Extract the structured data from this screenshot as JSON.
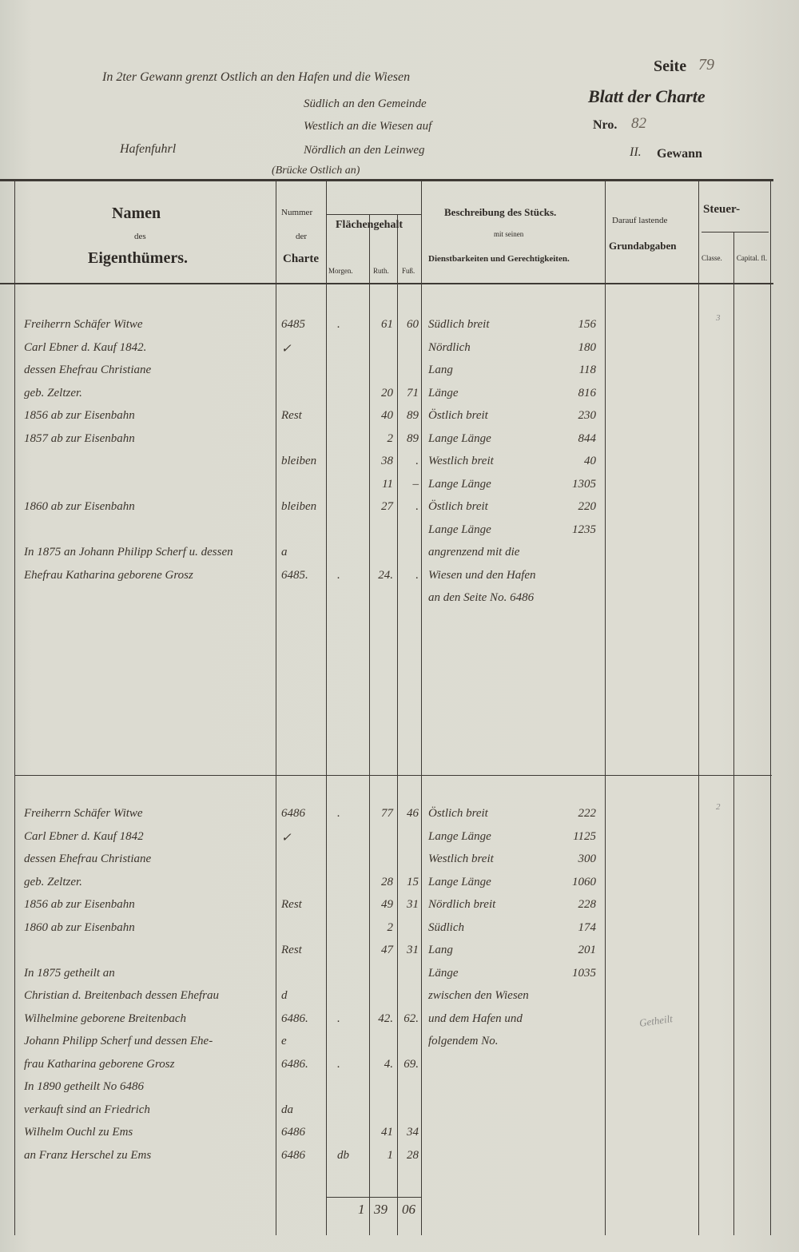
{
  "header": {
    "boundary_lines": [
      "In 2ter Gewann grenzt Ostlich an den Hafen und die Wiesen",
      "Südlich an den Gemeinde",
      "Westlich an die Wiesen auf",
      "Nördlich an den Leinweg",
      "(Brücke Ostlich an)"
    ],
    "field_name": "Hafenfuhrl",
    "seite_label": "Seite",
    "seite_value": "79",
    "blatt_label": "Blatt der Charte",
    "nro_label": "Nro.",
    "nro_value": "82",
    "gewann_number": "II.",
    "gewann_label": "Gewann"
  },
  "columns": {
    "namen": "Namen",
    "des": "des",
    "eigenthuemers": "Eigenthümers.",
    "nummer": "Nummer",
    "der": "der",
    "charte": "Charte",
    "flaechengehalt": "Flächengehalt",
    "morgen": "Morgen.",
    "ruth": "Ruth.",
    "fuss": "Fuß.",
    "beschreibung": "Beschreibung des Stücks.",
    "mit_seinen": "mit seinen",
    "dienstbarkeiten": "Dienstbarkeiten und Gerechtigkeiten.",
    "darauf": "Darauf lastende",
    "grundabgaben": "Grundabgaben",
    "steuer": "Steuer-",
    "classe": "Classe.",
    "capital": "Capital. fl."
  },
  "sections": [
    {
      "classe": "3",
      "lines": [
        {
          "name": "Freiherrn Schäfer Witwe",
          "num": "6485",
          "morgen": ".",
          "ruth": "61",
          "fuss": "60",
          "desc": "Südlich breit",
          "val": "156"
        },
        {
          "name": "Carl Ebner d. Kauf 1842.",
          "num": "✓",
          "morgen": "",
          "ruth": "",
          "fuss": "",
          "desc": "Nördlich",
          "val": "180"
        },
        {
          "name": "dessen Ehefrau Christiane",
          "num": "",
          "morgen": "",
          "ruth": "",
          "fuss": "",
          "desc": "Lang",
          "val": "118"
        },
        {
          "name": "   geb. Zeltzer.",
          "num": "",
          "morgen": "",
          "ruth": "20",
          "fuss": "71",
          "desc": "      Länge",
          "val": "816"
        },
        {
          "name": "1856 ab zur Eisenbahn",
          "num": "Rest",
          "morgen": "",
          "ruth": "40",
          "fuss": "89",
          "desc": "Östlich breit",
          "val": "230"
        },
        {
          "name": "1857 ab zur Eisenbahn",
          "num": "",
          "morgen": "",
          "ruth": "2",
          "fuss": "89",
          "desc": "Lange Länge",
          "val": "844"
        },
        {
          "name": "",
          "num": "bleiben",
          "morgen": "",
          "ruth": "38",
          "fuss": ".",
          "desc": "Westlich breit",
          "val": "40"
        },
        {
          "name": "",
          "num": "",
          "morgen": "",
          "ruth": "11",
          "fuss": "–",
          "desc": "Lange Länge",
          "val": "1305"
        },
        {
          "name": "1860 ab zur Eisenbahn",
          "num": "bleiben",
          "morgen": "",
          "ruth": "27",
          "fuss": ".",
          "desc": "Östlich breit",
          "val": "220"
        },
        {
          "name": "",
          "num": "",
          "morgen": "",
          "ruth": "",
          "fuss": "",
          "desc": "Lange Länge",
          "val": "1235"
        },
        {
          "name": "In 1875 an Johann Philipp Scherf u. dessen",
          "num": "a",
          "morgen": "",
          "ruth": "",
          "fuss": "",
          "desc": "angrenzend mit die",
          "val": ""
        },
        {
          "name": "Ehefrau Katharina geborene Grosz",
          "num": "6485.",
          "morgen": ".",
          "ruth": "24.",
          "fuss": ".",
          "desc": "Wiesen und den Hafen",
          "val": ""
        },
        {
          "name": "",
          "num": "",
          "morgen": "",
          "ruth": "",
          "fuss": "",
          "desc": "an den Seite No. 6486",
          "val": ""
        }
      ]
    },
    {
      "classe": "2",
      "lines": [
        {
          "name": "Freiherrn Schäfer Witwe",
          "num": "6486",
          "morgen": ".",
          "ruth": "77",
          "fuss": "46",
          "desc": "Östlich breit",
          "val": "222"
        },
        {
          "name": "Carl Ebner d. Kauf 1842",
          "num": "✓",
          "morgen": "",
          "ruth": "",
          "fuss": "",
          "desc": "Lange Länge",
          "val": "1125"
        },
        {
          "name": "dessen Ehefrau Christiane",
          "num": "",
          "morgen": "",
          "ruth": "",
          "fuss": "",
          "desc": "Westlich breit",
          "val": "300"
        },
        {
          "name": "   geb. Zeltzer.",
          "num": "",
          "morgen": "",
          "ruth": "28",
          "fuss": "15",
          "desc": "Lange Länge",
          "val": "1060"
        },
        {
          "name": "1856 ab zur Eisenbahn",
          "num": "Rest",
          "morgen": "",
          "ruth": "49",
          "fuss": "31",
          "desc": "Nördlich breit",
          "val": "228"
        },
        {
          "name": "1860 ab zur Eisenbahn",
          "num": "",
          "morgen": "",
          "ruth": "2",
          "fuss": "",
          "desc": "Südlich",
          "val": "174"
        },
        {
          "name": "",
          "num": "Rest",
          "morgen": "",
          "ruth": "47",
          "fuss": "31",
          "desc": "Lang",
          "val": "201"
        },
        {
          "name": "In 1875 getheilt an",
          "num": "",
          "morgen": "",
          "ruth": "",
          "fuss": "",
          "desc": "      Länge",
          "val": "1035"
        },
        {
          "name": "Christian d. Breitenbach dessen Ehefrau",
          "num": "d",
          "morgen": "",
          "ruth": "",
          "fuss": "",
          "desc": "zwischen den Wiesen",
          "val": ""
        },
        {
          "name": "Wilhelmine geborene Breitenbach",
          "num": "6486.",
          "morgen": ".",
          "ruth": "42.",
          "fuss": "62.",
          "desc": "und dem Hafen und",
          "val": ""
        },
        {
          "name": "Johann Philipp Scherf und dessen Ehe-",
          "num": "e",
          "morgen": "",
          "ruth": "",
          "fuss": "",
          "desc": "folgendem No.",
          "val": ""
        },
        {
          "name": "frau Katharina geborene Grosz",
          "num": "6486.",
          "morgen": ".",
          "ruth": "4.",
          "fuss": "69.",
          "desc": "",
          "val": ""
        },
        {
          "name": "In 1890 getheilt No 6486",
          "num": "",
          "morgen": "",
          "ruth": "",
          "fuss": "",
          "desc": "",
          "val": ""
        },
        {
          "name": "verkauft sind an Friedrich",
          "num": "da",
          "morgen": "",
          "ruth": "",
          "fuss": "",
          "desc": "",
          "val": ""
        },
        {
          "name": "Wilhelm Ouchl zu Ems",
          "num": "6486",
          "morgen": "",
          "ruth": "41",
          "fuss": "34",
          "desc": "",
          "val": ""
        },
        {
          "name": "an Franz Herschel zu Ems",
          "num": "6486",
          "morgen": "db",
          "ruth": "1",
          "fuss": "28",
          "desc": "",
          "val": ""
        }
      ],
      "total": {
        "morgen": "1",
        "ruth": "39",
        "fuss": "06"
      },
      "margin_note": "Getheilt"
    }
  ]
}
